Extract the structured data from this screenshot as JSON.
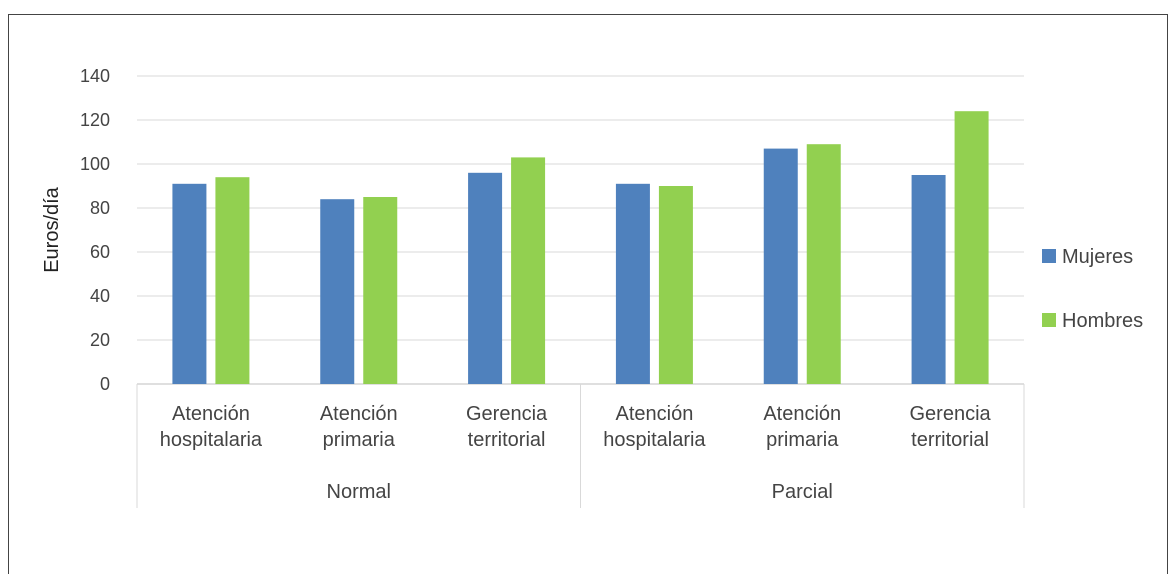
{
  "chart_data": {
    "type": "bar",
    "ylabel": "Euros/día",
    "ylim": [
      0,
      140
    ],
    "yticks": [
      0,
      20,
      40,
      60,
      80,
      100,
      120,
      140
    ],
    "grid": true,
    "legend_position": "right",
    "groups": [
      {
        "label": "Normal",
        "categories": [
          [
            "Atención",
            "hospitalaria"
          ],
          [
            "Atención",
            "primaria"
          ],
          [
            "Gerencia",
            "territorial"
          ]
        ]
      },
      {
        "label": "Parcial",
        "categories": [
          [
            "Atención",
            "hospitalaria"
          ],
          [
            "Atención",
            "primaria"
          ],
          [
            "Gerencia",
            "territorial"
          ]
        ]
      }
    ],
    "series": [
      {
        "name": "Mujeres",
        "color": "#4f81bd",
        "values": [
          91,
          84,
          96,
          91,
          107,
          95
        ]
      },
      {
        "name": "Hombres",
        "color": "#92d050",
        "values": [
          94,
          85,
          103,
          90,
          109,
          124
        ]
      }
    ]
  }
}
